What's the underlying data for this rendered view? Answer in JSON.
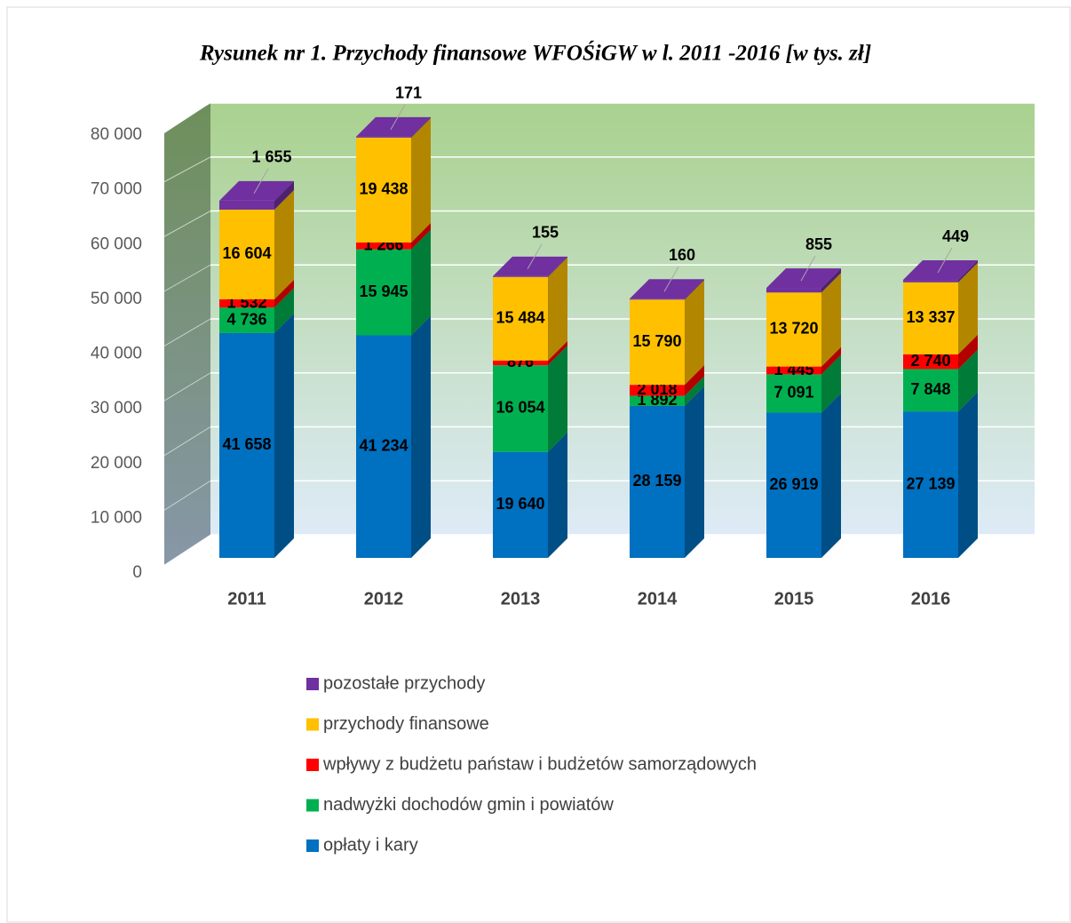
{
  "chart_data": {
    "type": "bar3d_stacked",
    "title": "Rysunek nr 1. Przychody finansowe WFOŚiGW w l. 2011 -2016 [w tys. zł]",
    "categories": [
      "2011",
      "2012",
      "2013",
      "2014",
      "2015",
      "2016"
    ],
    "series": [
      {
        "name": "opłaty i kary",
        "color": "#0070c0",
        "values": [
          41658,
          41234,
          19640,
          28159,
          26919,
          27139
        ],
        "value_labels": [
          "41 658",
          "41 234",
          "19 640",
          "28 159",
          "26 919",
          "27 139"
        ]
      },
      {
        "name": "nadwyżki dochodów gmin i powiatów",
        "color": "#00b050",
        "values": [
          4736,
          15945,
          16054,
          1892,
          7091,
          7848
        ],
        "value_labels": [
          "4 736",
          "15 945",
          "16 054",
          "1 892",
          "7 091",
          "7 848"
        ]
      },
      {
        "name": "wpływy z budżetu państaw i budżetów samorządowych",
        "color": "#ff0000",
        "values": [
          1532,
          1266,
          876,
          2018,
          1445,
          2740
        ],
        "value_labels": [
          "1 532",
          "1 266",
          "876",
          "2 018",
          "1 445",
          "2 740"
        ]
      },
      {
        "name": "przychody finansowe",
        "color": "#ffc000",
        "values": [
          16604,
          19438,
          15484,
          15790,
          13720,
          13337
        ],
        "value_labels": [
          "16 604",
          "19 438",
          "15 484",
          "15 790",
          "13 720",
          "13 337"
        ]
      },
      {
        "name": "pozostałe przychody",
        "color": "#7030a0",
        "values": [
          1655,
          171,
          155,
          160,
          855,
          449
        ],
        "value_labels": [
          "1 655",
          "171",
          "155",
          "160",
          "855",
          "449"
        ]
      }
    ],
    "ylim": [
      0,
      80000
    ],
    "yticks": [
      0,
      {
        "value": 10000,
        "label": "10 000"
      },
      {
        "value": 20000,
        "label": "20 000"
      },
      {
        "value": 30000,
        "label": "30 000"
      },
      {
        "value": 40000,
        "label": "40 000"
      },
      {
        "value": 50000,
        "label": "50 000"
      },
      {
        "value": 60000,
        "label": "60 000"
      },
      {
        "value": 70000,
        "label": "70 000"
      },
      {
        "value": 80000,
        "label": "80 000"
      }
    ],
    "grid": true
  }
}
